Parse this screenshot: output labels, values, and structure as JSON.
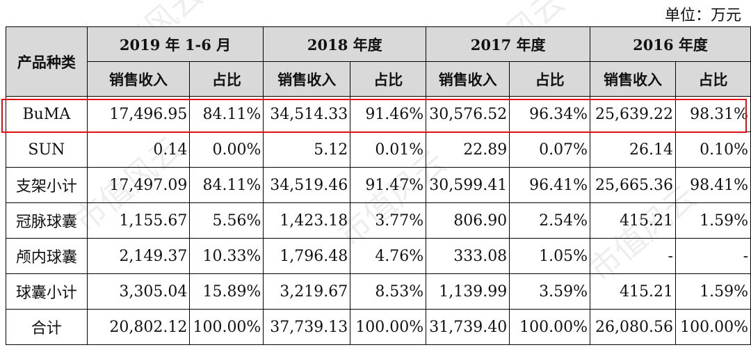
{
  "unit_label": "单位：万元",
  "watermark": "市值风云",
  "header": {
    "category_label": "产品种类",
    "periods": [
      "2019 年 1-6 月",
      "2018 年度",
      "2017 年度",
      "2016 年度"
    ],
    "sub_headers": [
      "销售收入",
      "占比",
      "销售收入",
      "占比",
      "销售收入",
      "占比",
      "销售收入",
      "占比"
    ]
  },
  "rows": [
    {
      "label": "BuMA",
      "cells": [
        "17,496.95",
        "84.11%",
        "34,514.33",
        "91.46%",
        "30,576.52",
        "96.34%",
        "25,639.22",
        "98.31%"
      ]
    },
    {
      "label": "SUN",
      "cells": [
        "0.14",
        "0.00%",
        "5.12",
        "0.01%",
        "22.89",
        "0.07%",
        "26.14",
        "0.10%"
      ]
    },
    {
      "label": "支架小计",
      "cells": [
        "17,497.09",
        "84.11%",
        "34,519.46",
        "91.47%",
        "30,599.41",
        "96.41%",
        "25,665.36",
        "98.41%"
      ]
    },
    {
      "label": "冠脉球囊",
      "cells": [
        "1,155.67",
        "5.56%",
        "1,423.18",
        "3.77%",
        "806.90",
        "2.54%",
        "415.21",
        "1.59%"
      ]
    },
    {
      "label": "颅内球囊",
      "cells": [
        "2,149.37",
        "10.33%",
        "1,796.48",
        "4.76%",
        "333.08",
        "1.05%",
        "-",
        "-"
      ]
    },
    {
      "label": "球囊小计",
      "cells": [
        "3,305.04",
        "15.89%",
        "3,219.67",
        "8.53%",
        "1,139.99",
        "3.59%",
        "415.21",
        "1.59%"
      ]
    },
    {
      "label": "合计",
      "cells": [
        "20,802.12",
        "100.00%",
        "37,739.13",
        "100.00%",
        "31,739.40",
        "100.00%",
        "26,080.56",
        "100.00%"
      ]
    }
  ]
}
